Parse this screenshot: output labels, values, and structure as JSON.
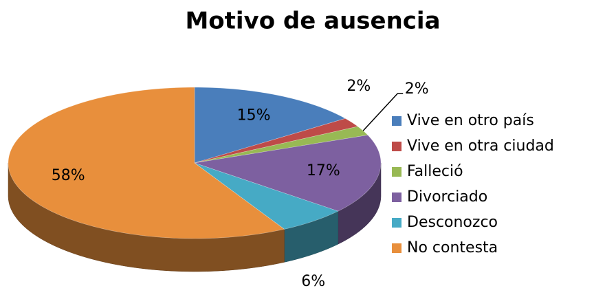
{
  "chart_data": {
    "type": "pie",
    "title": "Motivo de ausencia",
    "categories": [
      "Vive en otro país",
      "Vive en otra ciudad",
      "Falleció",
      "Divorciado",
      "Desconozco",
      "No contesta"
    ],
    "values": [
      15,
      2,
      2,
      17,
      6,
      58
    ],
    "value_labels": [
      "15%",
      "2%",
      "2%",
      "17%",
      "6%",
      "58%"
    ],
    "colors": [
      "#4a7ebb",
      "#be4b48",
      "#98b954",
      "#7d60a0",
      "#46aac5",
      "#e88f3c"
    ],
    "legend": "right"
  }
}
